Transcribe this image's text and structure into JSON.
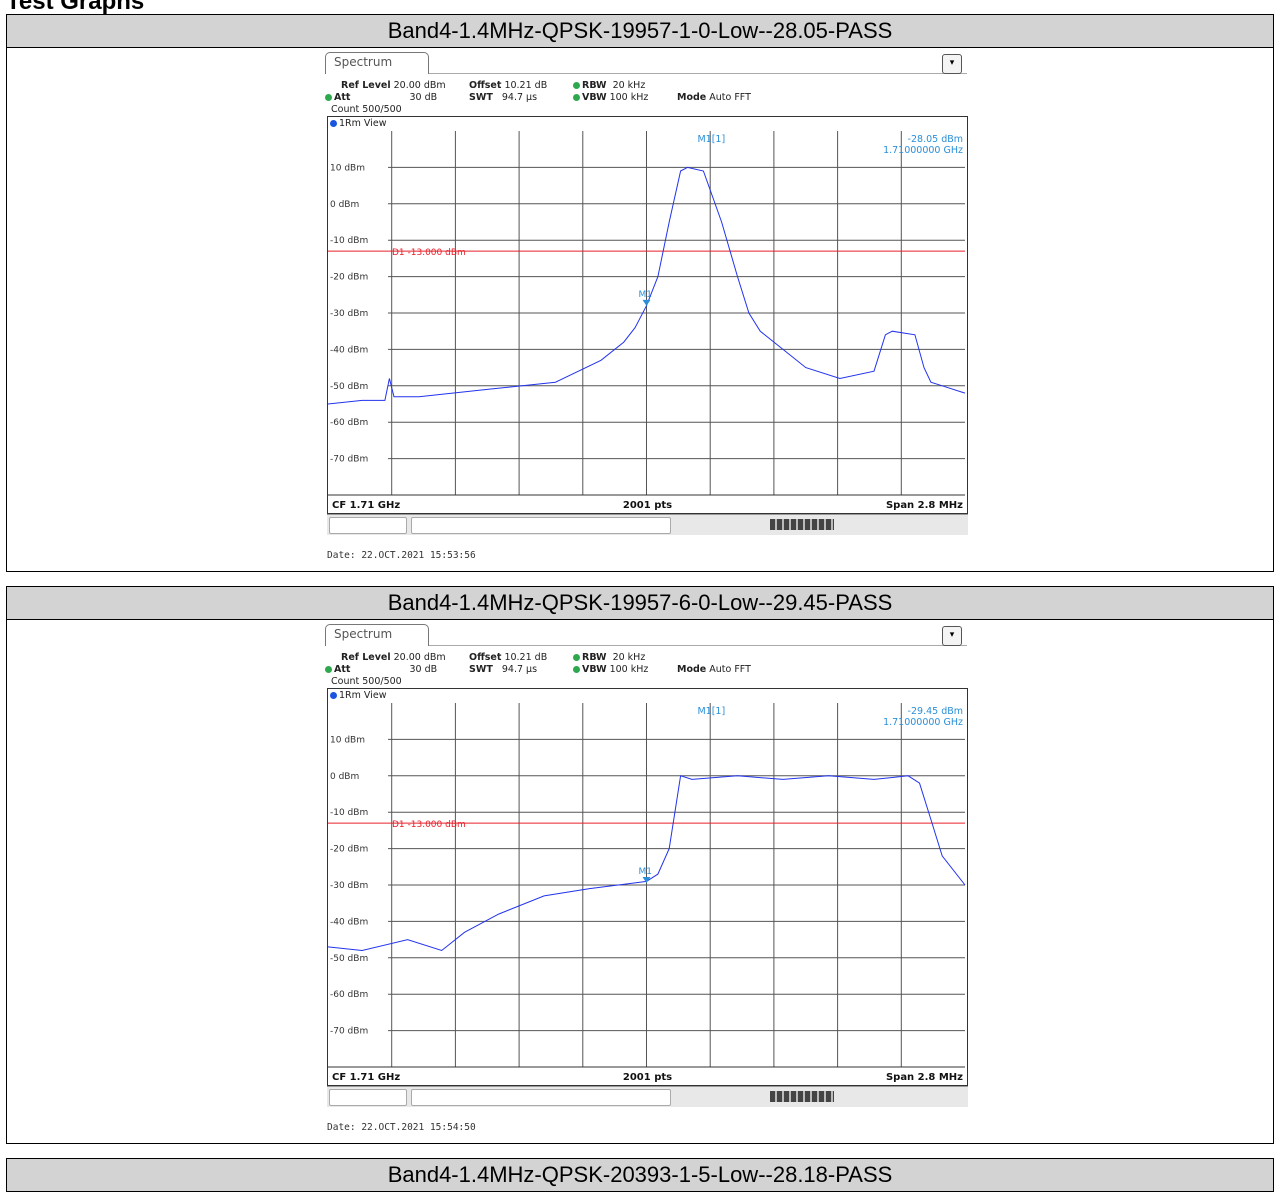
{
  "section_title": "Test Graphs",
  "panels": [
    {
      "header": "Band4-1.4MHz-QPSK-19957-1-0-Low--28.05-PASS",
      "tab": "Spectrum",
      "ref_level": "Ref Level",
      "ref_level_val": "20.00 dBm",
      "offset": "Offset",
      "offset_val": "10.21 dB",
      "rbw": "RBW",
      "rbw_val": "20 kHz",
      "att": "Att",
      "att_val": "30 dB",
      "swt": "SWT",
      "swt_val": "94.7 µs",
      "vbw": "VBW",
      "vbw_val": "100 kHz",
      "mode": "Mode",
      "mode_val": "Auto FFT",
      "count": "Count 500/500",
      "view": "1Rm View",
      "marker_name": "M1[1]",
      "marker_level": "-28.05 dBm",
      "marker_freq": "1.71000000 GHz",
      "marker_tag": "M1",
      "line_label": "D1  -13.000 dBm",
      "cf": "CF 1.71 GHz",
      "pts": "2001 pts",
      "span": "Span 2.8 MHz",
      "date": "Date: 22.OCT.2021  15:53:56"
    },
    {
      "header": "Band4-1.4MHz-QPSK-19957-6-0-Low--29.45-PASS",
      "tab": "Spectrum",
      "ref_level": "Ref Level",
      "ref_level_val": "20.00 dBm",
      "offset": "Offset",
      "offset_val": "10.21 dB",
      "rbw": "RBW",
      "rbw_val": "20 kHz",
      "att": "Att",
      "att_val": "30 dB",
      "swt": "SWT",
      "swt_val": "94.7 µs",
      "vbw": "VBW",
      "vbw_val": "100 kHz",
      "mode": "Mode",
      "mode_val": "Auto FFT",
      "count": "Count 500/500",
      "view": "1Rm View",
      "marker_name": "M1[1]",
      "marker_level": "-29.45 dBm",
      "marker_freq": "1.71000000 GHz",
      "marker_tag": "M1",
      "line_label": "D1  -13.000 dBm",
      "cf": "CF 1.71 GHz",
      "pts": "2001 pts",
      "span": "Span 2.8 MHz",
      "date": "Date: 22.OCT.2021  15:54:50"
    }
  ],
  "next_header": "Band4-1.4MHz-QPSK-20393-1-5-Low--28.18-PASS",
  "chart_data": [
    {
      "type": "line",
      "y_ticks": [
        "10 dBm",
        "0 dBm",
        "-10 dBm",
        "-20 dBm",
        "-30 dBm",
        "-40 dBm",
        "-50 dBm",
        "-60 dBm",
        "-70 dBm"
      ],
      "ylim": [
        -80,
        20
      ],
      "xlim": [
        1708.6,
        1711.4
      ],
      "x_unit": "MHz",
      "grid": true,
      "limit_line": {
        "name": "D1",
        "value": -13.0
      },
      "marker": {
        "x": 1710.0,
        "y": -28.05
      },
      "trace_color": "#2233ee",
      "x": [
        1708.6,
        1708.75,
        1708.85,
        1708.87,
        1708.89,
        1709.0,
        1709.3,
        1709.6,
        1709.8,
        1709.9,
        1709.95,
        1710.0,
        1710.05,
        1710.1,
        1710.15,
        1710.18,
        1710.25,
        1710.33,
        1710.4,
        1710.45,
        1710.5,
        1710.6,
        1710.7,
        1710.85,
        1711.0,
        1711.05,
        1711.08,
        1711.18,
        1711.22,
        1711.25,
        1711.3,
        1711.4
      ],
      "y": [
        -55,
        -54,
        -54,
        -48,
        -53,
        -53,
        -51,
        -49,
        -43,
        -38,
        -34,
        -28,
        -20,
        -5,
        9,
        10,
        9,
        -5,
        -20,
        -30,
        -35,
        -40,
        -45,
        -48,
        -46,
        -36,
        -35,
        -36,
        -45,
        -49,
        -50,
        -52
      ]
    },
    {
      "type": "line",
      "y_ticks": [
        "10 dBm",
        "0 dBm",
        "-10 dBm",
        "-20 dBm",
        "-30 dBm",
        "-40 dBm",
        "-50 dBm",
        "-60 dBm",
        "-70 dBm"
      ],
      "ylim": [
        -80,
        20
      ],
      "xlim": [
        1708.6,
        1711.4
      ],
      "x_unit": "MHz",
      "grid": true,
      "limit_line": {
        "name": "D1",
        "value": -13.0
      },
      "marker": {
        "x": 1710.0,
        "y": -29.45
      },
      "trace_color": "#2233ee",
      "x": [
        1708.6,
        1708.75,
        1708.95,
        1709.1,
        1709.2,
        1709.35,
        1709.55,
        1709.75,
        1710.0,
        1710.05,
        1710.1,
        1710.15,
        1710.2,
        1710.4,
        1710.6,
        1710.8,
        1711.0,
        1711.15,
        1711.2,
        1711.25,
        1711.3,
        1711.4
      ],
      "y": [
        -47,
        -48,
        -45,
        -48,
        -43,
        -38,
        -33,
        -31,
        -29,
        -27,
        -20,
        0,
        -1,
        0,
        -1,
        0,
        -1,
        0,
        -2,
        -12,
        -22,
        -30
      ]
    }
  ]
}
